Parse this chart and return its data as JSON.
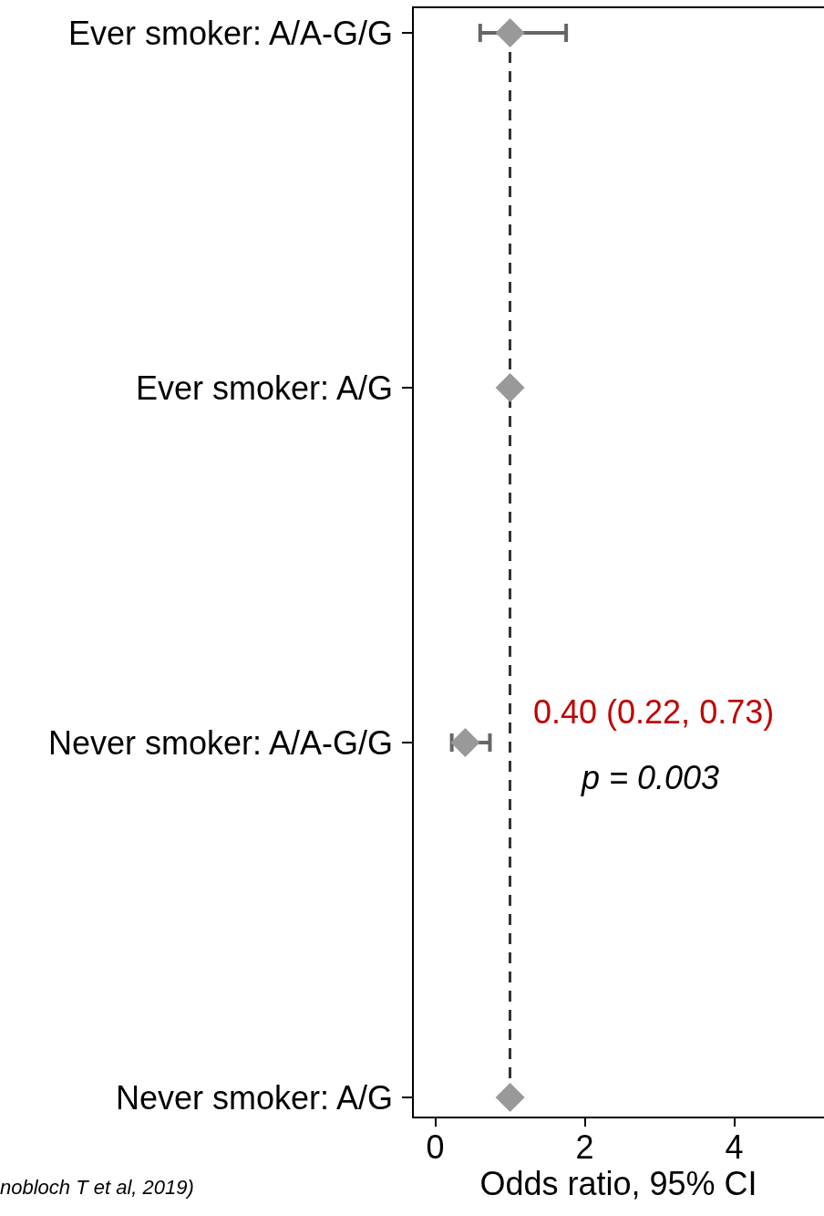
{
  "chart_data": {
    "type": "scatter",
    "orientation": "horizontal",
    "categories": [
      "Ever smoker: A/A-G/G",
      "Ever smoker: A/G",
      "Never smoker: A/A-G/G",
      "Never smoker: A/G"
    ],
    "values": [
      1.0,
      1,
      0.4,
      1
    ],
    "errors": [
      [
        0.6,
        1.75
      ],
      null,
      [
        0.22,
        0.73
      ],
      null
    ],
    "color": "#999999",
    "marker": "diamond",
    "xlim": [
      -0.3,
      5.2
    ],
    "xticks": [
      0,
      2,
      4
    ],
    "xlabel": "Odds ratio, 95% CI",
    "ref_lines": [
      {
        "axis": "x",
        "value": 1,
        "label": null,
        "color": "#333333",
        "line_style": "dashed"
      }
    ],
    "grid": false,
    "annotations": [
      "0.40 (0.22, 0.73)",
      "p = 0.003",
      "nobloch T et al, 2019)"
    ]
  }
}
